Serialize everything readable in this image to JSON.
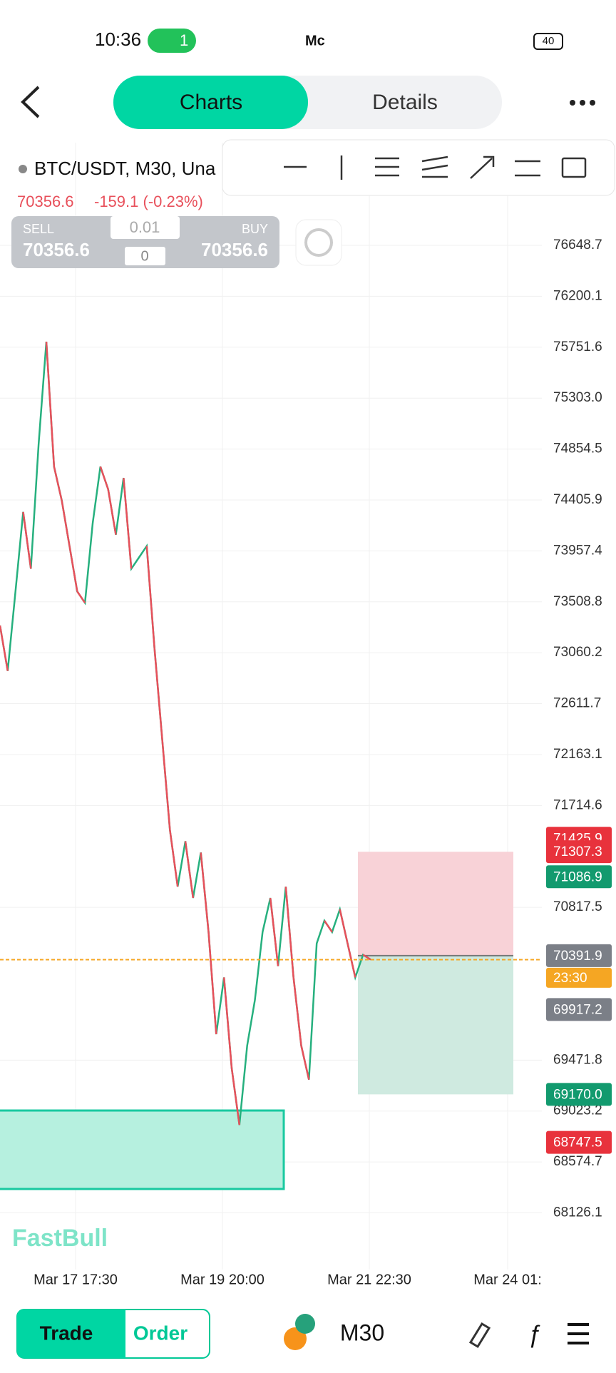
{
  "status_bar": {
    "time": "10:36",
    "hotspot_count": "1",
    "app_text": "Mc",
    "battery": "40"
  },
  "header": {
    "tabs": [
      "Charts",
      "Details"
    ]
  },
  "symbol": {
    "name": "BTC/USDT, M30, Una",
    "price": "70356.6",
    "change": "-159.1 (-0.23%)"
  },
  "order_panel": {
    "sell_label": "SELL",
    "buy_label": "BUY",
    "lot": "0.01",
    "count": "0",
    "sell_price": "70356.6",
    "buy_price": "70356.6"
  },
  "chart_data": {
    "type": "line",
    "values": [
      73300,
      72900,
      73600,
      74300,
      73800,
      74900,
      75800,
      74700,
      74400,
      74000,
      73600,
      73500,
      74200,
      74700,
      74500,
      74100,
      74600,
      73800,
      73900,
      74000,
      73100,
      72300,
      71500,
      71000,
      71400,
      70900,
      71300,
      70600,
      69700,
      70200,
      69400,
      68900,
      69600,
      70000,
      70600,
      70900,
      70300,
      71000,
      70200,
      69600,
      69300,
      70500,
      70700,
      70600,
      70800,
      70500,
      70200,
      70400,
      70356.6
    ],
    "up_color": "#26b07e",
    "down_color": "#e8505b",
    "ylim": [
      67626.7,
      77553.4
    ],
    "yticks": [
      76648.7,
      76200.1,
      75751.6,
      {
        "value": 75303,
        "label": "75303.0"
      },
      74854.5,
      74405.9,
      73957.4,
      73508.8,
      73060.2,
      72611.7,
      72163.1,
      71714.6,
      70817.5,
      69471.8,
      69023.2,
      68574.7,
      68126.1
    ],
    "x_labels": [
      "Mar 17 17:30",
      "Mar 19 20:00",
      "Mar 21 22:30",
      "Mar 24 01:"
    ],
    "current_price": 70356.6,
    "current_color": "#f5a623",
    "price_tags": [
      {
        "value": 71425.9,
        "color": "#e8323c"
      },
      {
        "value": 71307.3,
        "color": "#e8323c"
      },
      {
        "value": 71086.9,
        "color": "#129a6e"
      },
      {
        "value": 70391.9,
        "color": "#7b7f87"
      },
      {
        "value": 69917.2,
        "color": "#7b7f87"
      },
      {
        "value": 69170,
        "label": "69170.0",
        "color": "#129a6e"
      },
      {
        "value": 68747.5,
        "color": "#e8323c"
      }
    ],
    "countdown": "23:30",
    "grid": true
  },
  "watermark": "FastBull",
  "bottom_bar": {
    "trade": "Trade",
    "order": "Order",
    "timeframe": "M30"
  }
}
